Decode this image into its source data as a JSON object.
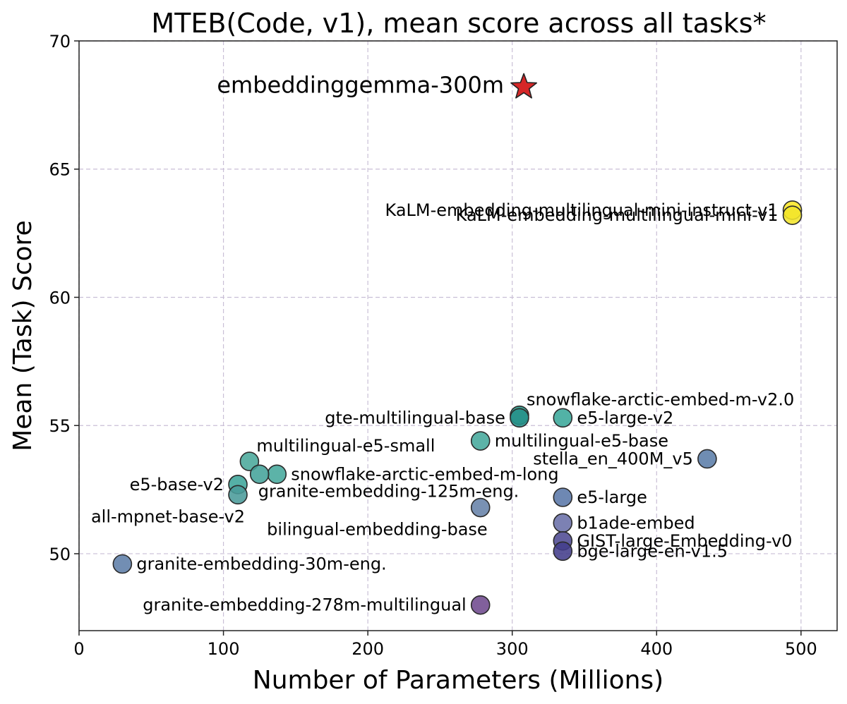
{
  "chart_data": {
    "type": "scatter",
    "title": "MTEB(Code, v1), mean score across all tasks*",
    "xlabel": "Number of Parameters (Millions)",
    "ylabel": "Mean (Task) Score",
    "xlim": [
      0,
      525
    ],
    "ylim": [
      47,
      70
    ],
    "xticks": [
      0,
      100,
      200,
      300,
      400,
      500
    ],
    "yticks": [
      50,
      55,
      60,
      65,
      70
    ],
    "grid": true,
    "points": [
      {
        "name": "embeddinggemma-300m",
        "x": 308,
        "y": 68.2,
        "marker": "star",
        "color": "#d62728",
        "label_side": "left",
        "highlight": true
      },
      {
        "name": "KaLM-embedding-multilingual-mini-instruct-v1",
        "x": 494,
        "y": 63.4,
        "color": "#fde725",
        "label_side": "left"
      },
      {
        "name": "KaLM-embedding-multilingual-mini-v1",
        "x": 494,
        "y": 63.2,
        "color": "#f2e52a",
        "label_side": "left"
      },
      {
        "name": "snowflake-arctic-embed-m-v2.0",
        "x": 305,
        "y": 55.4,
        "color": "#2a9d8c",
        "label_side": "above-right"
      },
      {
        "name": "gte-multilingual-base",
        "x": 305,
        "y": 55.3,
        "color": "#25918a",
        "label_side": "left"
      },
      {
        "name": "e5-large-v2",
        "x": 335,
        "y": 55.3,
        "color": "#3aa79a",
        "label_side": "right"
      },
      {
        "name": "multilingual-e5-base",
        "x": 278,
        "y": 54.4,
        "color": "#45a89c",
        "label_side": "right"
      },
      {
        "name": "stella_en_400M_v5",
        "x": 435,
        "y": 53.7,
        "color": "#5b7da9",
        "label_side": "left"
      },
      {
        "name": "multilingual-e5-small",
        "x": 118,
        "y": 53.6,
        "color": "#4aa99b",
        "label_side": "above-right"
      },
      {
        "name": "snowflake-arctic-embed-m-long",
        "x": 137,
        "y": 53.1,
        "color": "#45a89c",
        "label_side": "right"
      },
      {
        "name": "granite-embedding-125m-eng.",
        "x": 125,
        "y": 53.1,
        "color": "#44a39a",
        "label_side": "below-right"
      },
      {
        "name": "e5-base-v2",
        "x": 110,
        "y": 52.7,
        "color": "#3ea59a",
        "label_side": "left"
      },
      {
        "name": "all-mpnet-base-v2",
        "x": 110,
        "y": 52.3,
        "color": "#4a9b9a",
        "label_side": "below-left"
      },
      {
        "name": "e5-large",
        "x": 335,
        "y": 52.2,
        "color": "#5a78a8",
        "label_side": "right"
      },
      {
        "name": "bilingual-embedding-base",
        "x": 278,
        "y": 51.8,
        "color": "#6682a8",
        "label_side": "below-left"
      },
      {
        "name": "b1ade-embed",
        "x": 335,
        "y": 51.2,
        "color": "#6a6fa8",
        "label_side": "right"
      },
      {
        "name": "GIST-large-Embedding-v0",
        "x": 335,
        "y": 50.5,
        "color": "#4f4a93",
        "label_side": "right"
      },
      {
        "name": "bge-large-en-v1.5",
        "x": 335,
        "y": 50.1,
        "color": "#433d8b",
        "label_side": "right"
      },
      {
        "name": "granite-embedding-30m-eng.",
        "x": 30,
        "y": 49.6,
        "color": "#5f7ea8",
        "label_side": "right"
      },
      {
        "name": "granite-embedding-278m-multilingual",
        "x": 278,
        "y": 48.0,
        "color": "#6f4a8e",
        "label_side": "left"
      }
    ]
  }
}
